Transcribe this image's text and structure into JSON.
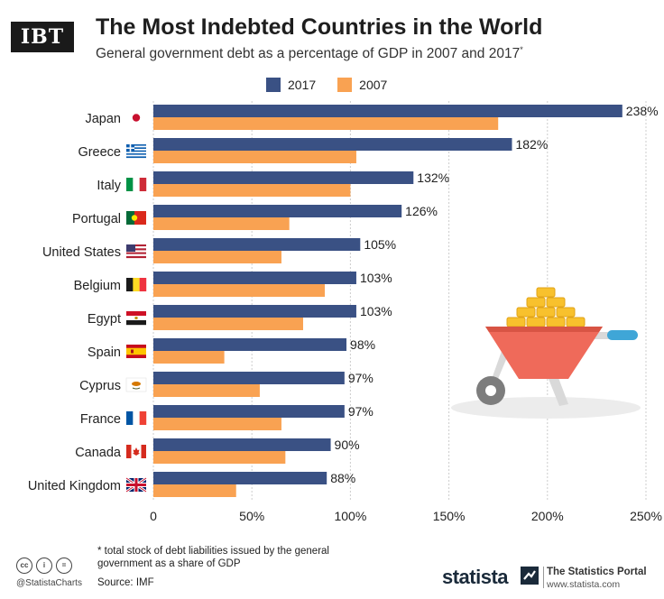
{
  "header": {
    "logo_text": "IBT",
    "title": "The Most Indebted Countries in the World",
    "subtitle": "General government debt as a percentage of GDP in 2007 and 2017",
    "subtitle_mark": "*"
  },
  "colors": {
    "series_2017": "#3a5184",
    "series_2007": "#f9a252",
    "grid": "#cccccc"
  },
  "chart_data": {
    "type": "bar",
    "orientation": "horizontal",
    "categories": [
      "Japan",
      "Greece",
      "Italy",
      "Portugal",
      "United States",
      "Belgium",
      "Egypt",
      "Spain",
      "Cyprus",
      "France",
      "Canada",
      "United Kingdom"
    ],
    "series": [
      {
        "name": "2017",
        "values": [
          238,
          182,
          132,
          126,
          105,
          103,
          103,
          98,
          97,
          97,
          90,
          88
        ]
      },
      {
        "name": "2007",
        "values": [
          175,
          103,
          100,
          69,
          65,
          87,
          76,
          36,
          54,
          65,
          67,
          42
        ]
      }
    ],
    "value_labels": [
      "238%",
      "182%",
      "132%",
      "126%",
      "105%",
      "103%",
      "103%",
      "98%",
      "97%",
      "97%",
      "90%",
      "88%"
    ],
    "x_ticks": [
      0,
      50,
      100,
      150,
      200,
      250
    ],
    "x_tick_labels": [
      "0",
      "50%",
      "100%",
      "150%",
      "200%",
      "250%"
    ],
    "xlim": [
      0,
      250
    ],
    "grid": true,
    "legend_position": "top"
  },
  "flags": [
    "japan-flag-icon",
    "greece-flag-icon",
    "italy-flag-icon",
    "portugal-flag-icon",
    "usa-flag-icon",
    "belgium-flag-icon",
    "egypt-flag-icon",
    "spain-flag-icon",
    "cyprus-flag-icon",
    "france-flag-icon",
    "canada-flag-icon",
    "uk-flag-icon"
  ],
  "footer": {
    "footnote": "* total stock of debt liabilities issued by the general government as a share of GDP",
    "source": "Source: IMF",
    "handle": "@StatistaCharts",
    "brand": "statista",
    "portal_title": "The Statistics Portal",
    "portal_url": "www.statista.com"
  }
}
